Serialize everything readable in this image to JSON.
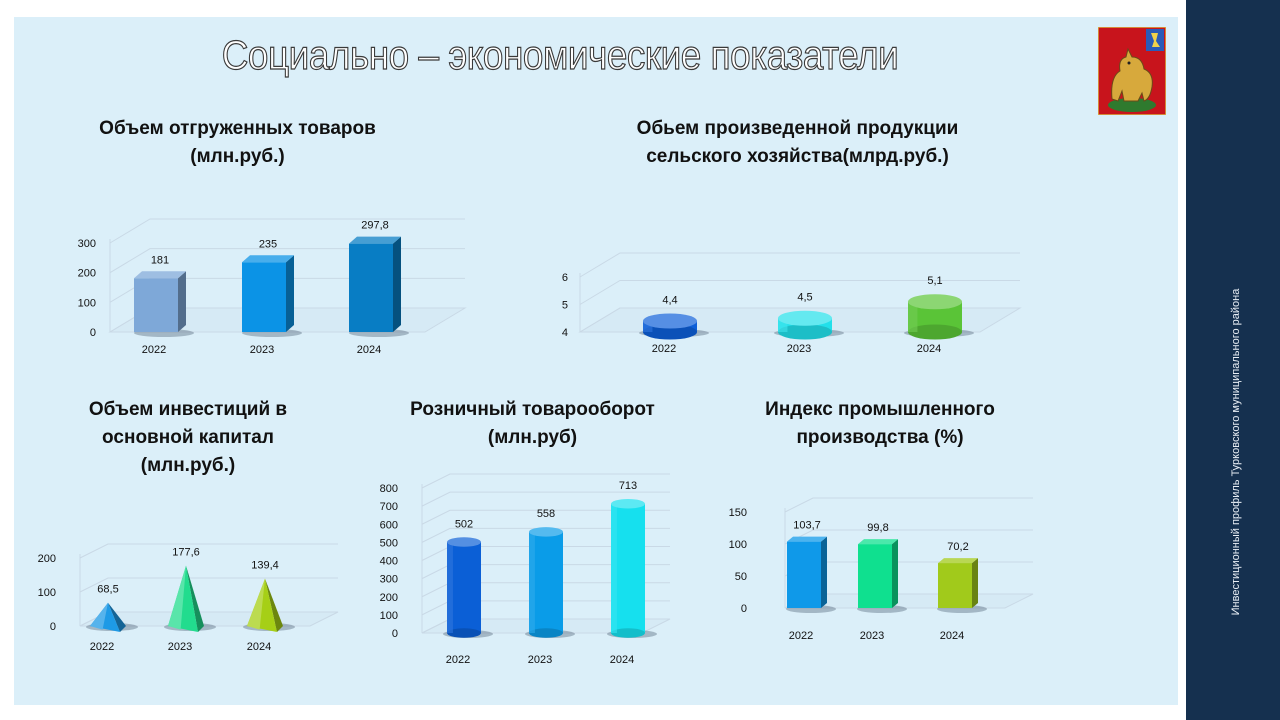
{
  "page": {
    "title": "Социально – экономические  показатели",
    "sidebar_text": "Инвестиционный профиль  Турковского муниципального района",
    "emblem_icon": "coat-of-arms-lynx-icon"
  },
  "colors": {
    "panel_bg": "#dbeff9",
    "sidebar_bg": "#15304f"
  },
  "chart_data": [
    {
      "id": "shipped",
      "type": "bar",
      "shape": "box",
      "title": "Объем отгруженных товаров\n(млн.руб.)",
      "categories": [
        "2022",
        "2023",
        "2024"
      ],
      "values": [
        181,
        235,
        297.8
      ],
      "value_labels": [
        "181",
        "235",
        "297,8"
      ],
      "ylim": [
        0,
        300
      ],
      "yticks": [
        "0",
        "100",
        "200",
        "300"
      ],
      "colors": [
        "#7ea8d8",
        "#0b93e6",
        "#087dc4"
      ],
      "grid": true
    },
    {
      "id": "agro",
      "type": "bar",
      "shape": "cylinder",
      "title": "Обьем произведенной продукции\nсельского хозяйства(млрд.руб.)",
      "categories": [
        "2022",
        "2023",
        "2024"
      ],
      "values": [
        4.4,
        4.5,
        5.1
      ],
      "value_labels": [
        "4,4",
        "4,5",
        "5,1"
      ],
      "ylim": [
        4,
        6
      ],
      "yticks": [
        "4",
        "5",
        "6"
      ],
      "colors": [
        "#0d5fd8",
        "#22e0ea",
        "#5ac437"
      ],
      "grid": true
    },
    {
      "id": "invest",
      "type": "bar",
      "shape": "pyramid",
      "title": "Объем инвестиций в\nосновной капитал\n(млн.руб.)",
      "categories": [
        "2022",
        "2023",
        "2024"
      ],
      "values": [
        68.5,
        177.6,
        139.4
      ],
      "value_labels": [
        "68,5",
        "177,6",
        "139,4"
      ],
      "ylim": [
        0,
        200
      ],
      "yticks": [
        "0",
        "100",
        "200"
      ],
      "colors": [
        "#1e9ae6",
        "#22dc8e",
        "#a6cf16"
      ],
      "grid": true
    },
    {
      "id": "retail",
      "type": "bar",
      "shape": "cylinder",
      "title": "Розничный товарооборот\n(млн.руб)",
      "categories": [
        "2022",
        "2023",
        "2024"
      ],
      "values": [
        502,
        558,
        713
      ],
      "value_labels": [
        "502",
        "558",
        "713"
      ],
      "ylim": [
        0,
        800
      ],
      "yticks": [
        "0",
        "100",
        "200",
        "300",
        "400",
        "500",
        "600",
        "700",
        "800"
      ],
      "colors": [
        "#0b5fd6",
        "#0a9ce8",
        "#16e0ee"
      ],
      "grid": true
    },
    {
      "id": "industry",
      "type": "bar",
      "shape": "box",
      "title": "Индекс промышленного\nпроизводства (%)",
      "categories": [
        "2022",
        "2023",
        "2024"
      ],
      "values": [
        103.7,
        99.8,
        70.2
      ],
      "value_labels": [
        "103,7",
        "99,8",
        "70,2"
      ],
      "ylim": [
        0,
        150
      ],
      "yticks": [
        "0",
        "50",
        "100",
        "150"
      ],
      "colors": [
        "#0f99e9",
        "#0fe08f",
        "#a1ca1b"
      ],
      "grid": true
    }
  ]
}
